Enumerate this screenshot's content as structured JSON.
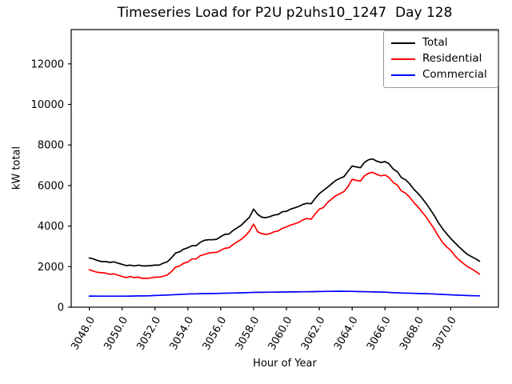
{
  "chart_data": {
    "type": "line",
    "title": "Timeseries Load for P2U p2uhs10_1247  Day 128",
    "xlabel": "Hour of Year",
    "ylabel": "kW total",
    "xlim": [
      3046.9,
      3072.9
    ],
    "ylim": [
      0,
      13690
    ],
    "grid": false,
    "legend_position": "upper right",
    "x_ticks": [
      3048,
      3050,
      3052,
      3054,
      3056,
      3058,
      3060,
      3062,
      3064,
      3066,
      3068,
      3070
    ],
    "x_tick_labels": [
      "3048.0",
      "3050.0",
      "3052.0",
      "3054.0",
      "3056.0",
      "3058.0",
      "3060.0",
      "3062.0",
      "3064.0",
      "3066.0",
      "3068.0",
      "3070.0"
    ],
    "y_ticks": [
      0,
      2000,
      4000,
      6000,
      8000,
      10000,
      12000
    ],
    "y_tick_labels": [
      "0",
      "2000",
      "4000",
      "6000",
      "8000",
      "10000",
      "12000"
    ],
    "x": [
      3048,
      3048.25,
      3048.5,
      3048.75,
      3049,
      3049.25,
      3049.5,
      3049.75,
      3050,
      3050.25,
      3050.5,
      3050.75,
      3051,
      3051.25,
      3051.5,
      3051.75,
      3052,
      3052.25,
      3052.5,
      3052.75,
      3053,
      3053.25,
      3053.5,
      3053.75,
      3054,
      3054.25,
      3054.5,
      3054.75,
      3055,
      3055.25,
      3055.5,
      3055.75,
      3056,
      3056.25,
      3056.5,
      3056.75,
      3057,
      3057.25,
      3057.5,
      3057.75,
      3058,
      3058.25,
      3058.5,
      3058.75,
      3059,
      3059.25,
      3059.5,
      3059.75,
      3060,
      3060.25,
      3060.5,
      3060.75,
      3061,
      3061.25,
      3061.5,
      3061.75,
      3062,
      3062.25,
      3062.5,
      3062.75,
      3063,
      3063.25,
      3063.5,
      3063.75,
      3064,
      3064.25,
      3064.5,
      3064.75,
      3065,
      3065.25,
      3065.5,
      3065.75,
      3066,
      3066.25,
      3066.5,
      3066.75,
      3067,
      3067.25,
      3067.5,
      3067.75,
      3068,
      3068.25,
      3068.5,
      3068.75,
      3069,
      3069.25,
      3069.5,
      3069.75,
      3070,
      3070.25,
      3070.5,
      3070.75,
      3071,
      3071.25,
      3071.5,
      3071.75
    ],
    "series": [
      {
        "key": "total",
        "name": "Total",
        "color": "#000000",
        "values": [
          2430,
          2380,
          2300,
          2250,
          2250,
          2210,
          2235,
          2170,
          2115,
          2050,
          2075,
          2035,
          2075,
          2035,
          2035,
          2050,
          2075,
          2075,
          2170,
          2235,
          2430,
          2670,
          2735,
          2865,
          2930,
          3035,
          3035,
          3195,
          3300,
          3325,
          3325,
          3350,
          3480,
          3590,
          3610,
          3785,
          3915,
          4045,
          4245,
          4440,
          4835,
          4575,
          4440,
          4415,
          4470,
          4545,
          4575,
          4705,
          4730,
          4835,
          4900,
          4970,
          5070,
          5125,
          5100,
          5365,
          5600,
          5760,
          5915,
          6085,
          6255,
          6350,
          6440,
          6705,
          6965,
          6915,
          6875,
          7140,
          7270,
          7310,
          7200,
          7140,
          7180,
          7070,
          6810,
          6680,
          6390,
          6285,
          6085,
          5820,
          5620,
          5380,
          5120,
          4820,
          4520,
          4170,
          3870,
          3620,
          3390,
          3180,
          2980,
          2790,
          2610,
          2500,
          2400,
          2270
        ]
      },
      {
        "key": "residential",
        "name": "Residential",
        "color": "#ff0000",
        "values": [
          1850,
          1780,
          1720,
          1700,
          1680,
          1620,
          1645,
          1580,
          1515,
          1460,
          1510,
          1460,
          1480,
          1420,
          1420,
          1445,
          1480,
          1485,
          1525,
          1590,
          1750,
          1975,
          2035,
          2170,
          2230,
          2380,
          2380,
          2540,
          2600,
          2665,
          2695,
          2705,
          2800,
          2905,
          2930,
          3090,
          3220,
          3350,
          3520,
          3750,
          4100,
          3720,
          3630,
          3590,
          3630,
          3720,
          3760,
          3890,
          3960,
          4050,
          4110,
          4180,
          4310,
          4375,
          4335,
          4600,
          4835,
          4915,
          5165,
          5335,
          5495,
          5600,
          5700,
          5950,
          6310,
          6255,
          6220,
          6480,
          6610,
          6650,
          6545,
          6480,
          6520,
          6390,
          6150,
          6020,
          5730,
          5625,
          5425,
          5165,
          4950,
          4700,
          4450,
          4150,
          3850,
          3500,
          3200,
          2980,
          2800,
          2540,
          2340,
          2170,
          2010,
          1900,
          1775,
          1630
        ]
      },
      {
        "key": "commercial",
        "name": "Commercial",
        "color": "#0000ff",
        "values": [
          550,
          548,
          546,
          545,
          545,
          544,
          544,
          545,
          545,
          546,
          548,
          551,
          555,
          558,
          561,
          567,
          575,
          582,
          590,
          600,
          610,
          620,
          630,
          640,
          650,
          655,
          660,
          665,
          670,
          672,
          675,
          680,
          685,
          690,
          695,
          700,
          705,
          710,
          715,
          722,
          730,
          732,
          735,
          738,
          740,
          742,
          745,
          748,
          750,
          752,
          755,
          758,
          760,
          762,
          765,
          770,
          775,
          778,
          780,
          782,
          785,
          790,
          785,
          782,
          780,
          775,
          770,
          765,
          760,
          755,
          750,
          745,
          740,
          730,
          720,
          710,
          700,
          695,
          690,
          682,
          675,
          670,
          665,
          658,
          650,
          640,
          630,
          620,
          610,
          600,
          590,
          582,
          575,
          570,
          565,
          560
        ]
      }
    ]
  }
}
